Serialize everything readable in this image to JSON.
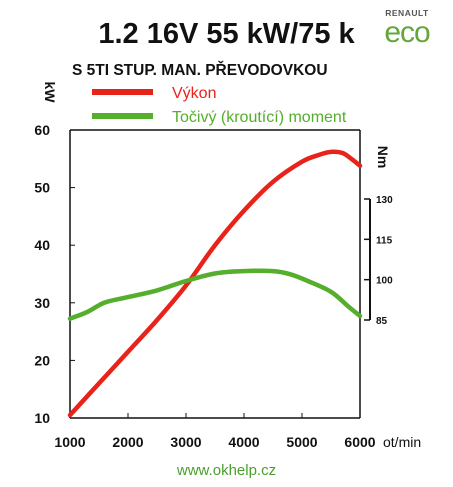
{
  "header": {
    "title": "1.2 16V 55 kW/75 k",
    "subtitle": "S 5TI STUP. MAN. PŘEVODOVKOU"
  },
  "brand": {
    "top": "RENAULT",
    "eco": "eco",
    "color": "#63a73b"
  },
  "footer": {
    "url": "www.okhelp.cz",
    "color": "#4aa02c"
  },
  "chart_data": {
    "type": "line",
    "xlabel": "ot/min",
    "ylabel": "kW",
    "y2label": "Nm",
    "xlim": [
      1000,
      6000
    ],
    "ylim": [
      10,
      60
    ],
    "y2lim": [
      85,
      130
    ],
    "x_ticks": [
      "1000",
      "2000",
      "3000",
      "4000",
      "5000",
      "6000"
    ],
    "y_ticks": [
      "10",
      "20",
      "30",
      "40",
      "50",
      "60"
    ],
    "y2_ticks": [
      "85",
      "100",
      "115",
      "130"
    ],
    "grid": false,
    "legend_position": "top",
    "series": [
      {
        "name": "Výkon",
        "axis": "left",
        "color": "#e8231a",
        "x": [
          1000,
          1500,
          2000,
          2500,
          3000,
          3500,
          4000,
          4500,
          5000,
          5300,
          5500,
          5700,
          5850,
          6000
        ],
        "y": [
          10.5,
          16,
          21.5,
          27,
          33,
          40,
          46,
          51,
          54.5,
          55.7,
          56.2,
          56,
          55,
          53.8
        ]
      },
      {
        "name": "Točivý (kroutící) moment",
        "axis": "right",
        "color": "#55ae2c",
        "x": [
          1000,
          1300,
          1600,
          2000,
          2500,
          3000,
          3500,
          4000,
          4500,
          4800,
          5100,
          5500,
          5800,
          6000
        ],
        "y": [
          85.5,
          88,
          91.5,
          93.5,
          96,
          99.5,
          102.3,
          103.2,
          103.2,
          102,
          99.5,
          95.5,
          90,
          86.5
        ]
      }
    ]
  }
}
